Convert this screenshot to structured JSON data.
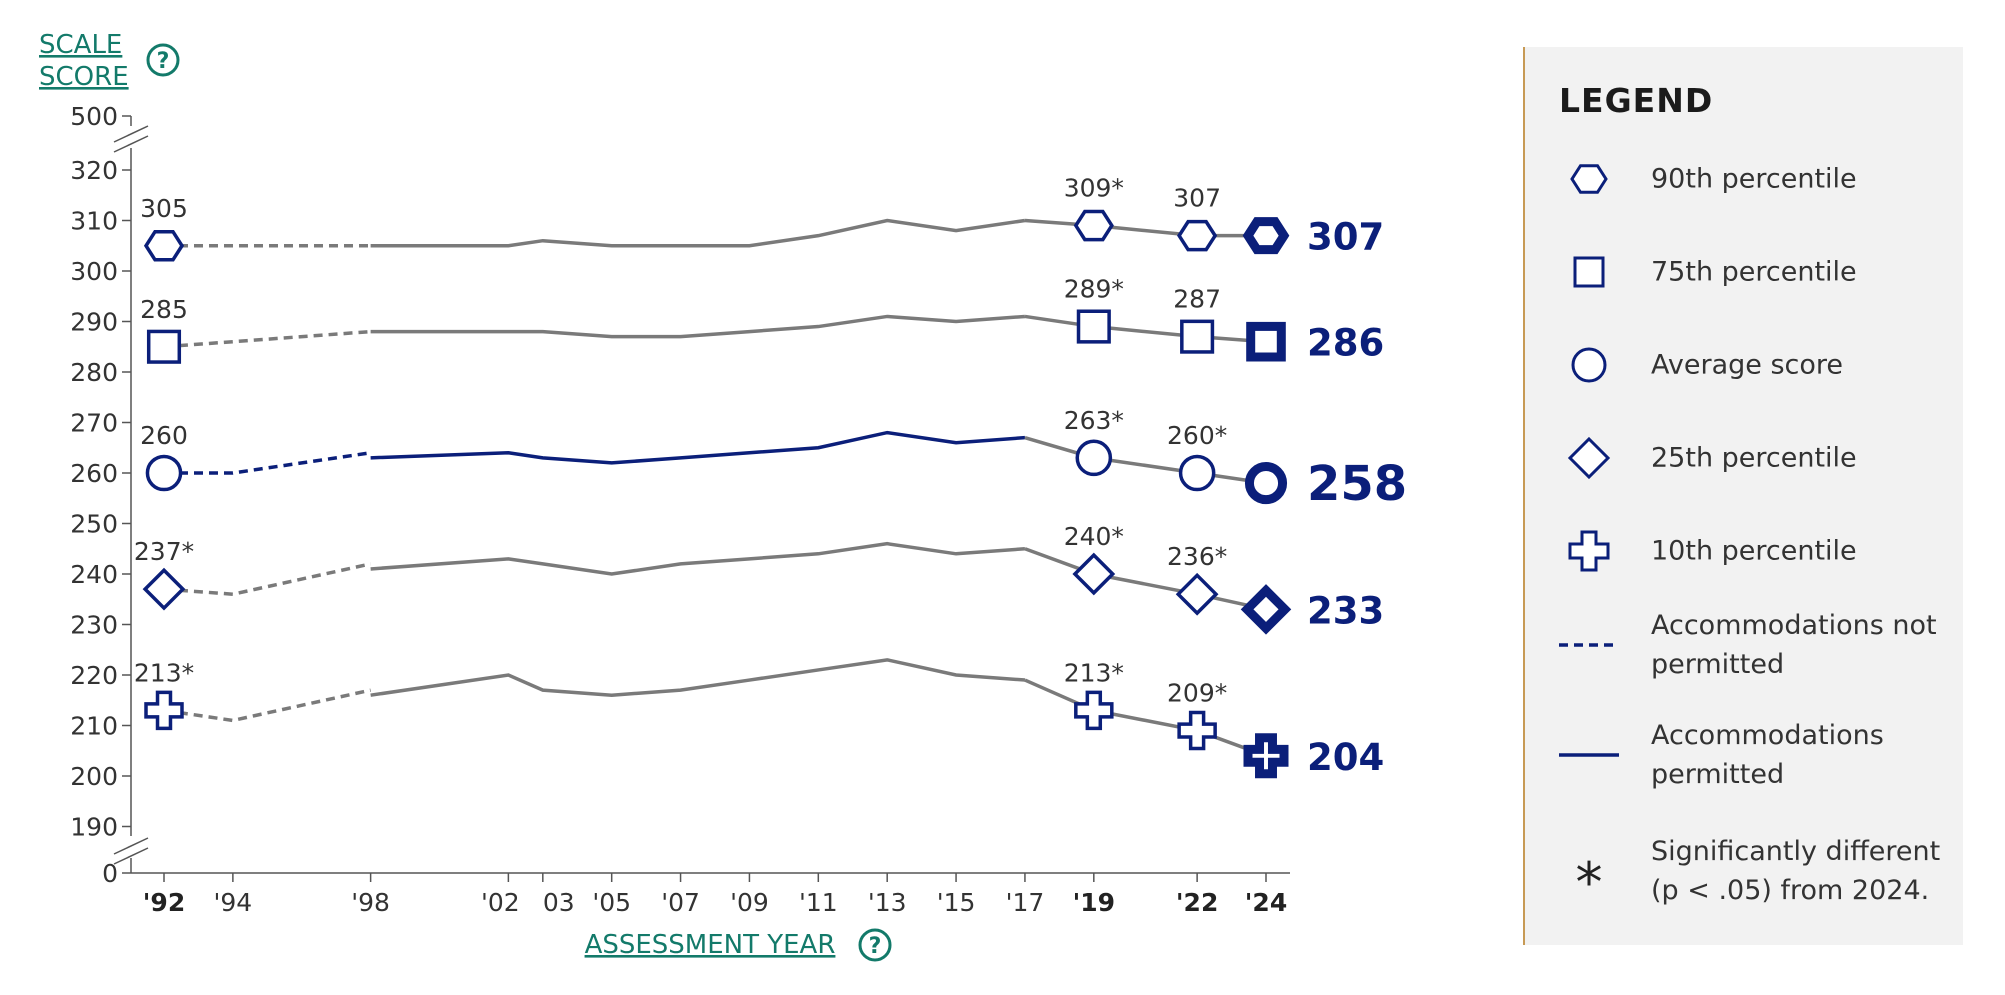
{
  "y_axis": {
    "label_line1": "SCALE",
    "label_line2": "SCORE",
    "help_icon": "question-circle-icon"
  },
  "x_axis": {
    "label": "ASSESSMENT YEAR",
    "help_icon": "question-circle-icon"
  },
  "colors": {
    "navy": "#0b1f7a",
    "gray": "#7a7a7a",
    "teal": "#137a6a",
    "legend_bg": "#f2f2f2",
    "legend_border": "#c79a55"
  },
  "chart_data": {
    "type": "line",
    "ylabel": "SCALE SCORE",
    "xlabel": "ASSESSMENT YEAR",
    "y_ticks": [
      "500",
      "320",
      "310",
      "300",
      "290",
      "280",
      "270",
      "260",
      "250",
      "240",
      "230",
      "220",
      "210",
      "200",
      "190",
      "0"
    ],
    "ylim": [
      190,
      320
    ],
    "y_axis_break": true,
    "x_ticks": [
      {
        "year": 1992,
        "label": "'92",
        "bold": true
      },
      {
        "year": 1994,
        "label": "'94",
        "bold": false
      },
      {
        "year": 1998,
        "label": "'98",
        "bold": false
      },
      {
        "year": 2002,
        "label": "'02",
        "bold": false
      },
      {
        "year": 2003,
        "label": "03",
        "bold": false
      },
      {
        "year": 2005,
        "label": "'05",
        "bold": false
      },
      {
        "year": 2007,
        "label": "'07",
        "bold": false
      },
      {
        "year": 2009,
        "label": "'09",
        "bold": false
      },
      {
        "year": 2011,
        "label": "'11",
        "bold": false
      },
      {
        "year": 2013,
        "label": "'13",
        "bold": false
      },
      {
        "year": 2015,
        "label": "'15",
        "bold": false
      },
      {
        "year": 2017,
        "label": "'17",
        "bold": false
      },
      {
        "year": 2019,
        "label": "'19",
        "bold": true
      },
      {
        "year": 2022,
        "label": "'22",
        "bold": true
      },
      {
        "year": 2024,
        "label": "'24",
        "bold": true
      }
    ],
    "series": [
      {
        "marker": "hexagon",
        "color": "gray",
        "values_not_permitted": [
          [
            1992,
            305
          ],
          [
            1994,
            305
          ],
          [
            1998,
            305
          ]
        ],
        "values_permitted": [
          [
            1998,
            305
          ],
          [
            2002,
            305
          ],
          [
            2003,
            306
          ],
          [
            2005,
            305
          ],
          [
            2007,
            305
          ],
          [
            2009,
            305
          ],
          [
            2011,
            307
          ],
          [
            2013,
            310
          ],
          [
            2015,
            308
          ],
          [
            2017,
            310
          ],
          [
            2019,
            309
          ],
          [
            2022,
            307
          ],
          [
            2024,
            307
          ]
        ],
        "labeled_points": [
          {
            "year": 1992,
            "value": 305,
            "label": "305"
          },
          {
            "year": 2019,
            "value": 309,
            "label": "309*"
          },
          {
            "year": 2022,
            "value": 307,
            "label": "307"
          }
        ],
        "end_label": "307"
      },
      {
        "marker": "square",
        "color": "gray",
        "values_not_permitted": [
          [
            1992,
            285
          ],
          [
            1994,
            286
          ],
          [
            1998,
            288
          ]
        ],
        "values_permitted": [
          [
            1998,
            288
          ],
          [
            2002,
            288
          ],
          [
            2003,
            288
          ],
          [
            2005,
            287
          ],
          [
            2007,
            287
          ],
          [
            2009,
            288
          ],
          [
            2011,
            289
          ],
          [
            2013,
            291
          ],
          [
            2015,
            290
          ],
          [
            2017,
            291
          ],
          [
            2019,
            289
          ],
          [
            2022,
            287
          ],
          [
            2024,
            286
          ]
        ],
        "labeled_points": [
          {
            "year": 1992,
            "value": 285,
            "label": "285"
          },
          {
            "year": 2019,
            "value": 289,
            "label": "289*"
          },
          {
            "year": 2022,
            "value": 287,
            "label": "287"
          }
        ],
        "end_label": "286"
      },
      {
        "marker": "circle",
        "color": "navy",
        "values_not_permitted": [
          [
            1992,
            260
          ],
          [
            1994,
            260
          ],
          [
            1998,
            264
          ]
        ],
        "values_permitted": [
          [
            1998,
            263
          ],
          [
            2002,
            264
          ],
          [
            2003,
            263
          ],
          [
            2005,
            262
          ],
          [
            2007,
            263
          ],
          [
            2009,
            264
          ],
          [
            2011,
            265
          ],
          [
            2013,
            268
          ],
          [
            2015,
            266
          ],
          [
            2017,
            267
          ],
          [
            2019,
            263
          ],
          [
            2022,
            260
          ],
          [
            2024,
            258
          ]
        ],
        "labeled_points": [
          {
            "year": 1992,
            "value": 260,
            "label": "260"
          },
          {
            "year": 2019,
            "value": 263,
            "label": "263*"
          },
          {
            "year": 2022,
            "value": 260,
            "label": "260*"
          }
        ],
        "end_label": "258"
      },
      {
        "marker": "diamond",
        "color": "gray",
        "values_not_permitted": [
          [
            1992,
            237
          ],
          [
            1994,
            236
          ],
          [
            1998,
            242
          ]
        ],
        "values_permitted": [
          [
            1998,
            241
          ],
          [
            2002,
            243
          ],
          [
            2003,
            242
          ],
          [
            2005,
            240
          ],
          [
            2007,
            242
          ],
          [
            2009,
            243
          ],
          [
            2011,
            244
          ],
          [
            2013,
            246
          ],
          [
            2015,
            244
          ],
          [
            2017,
            245
          ],
          [
            2019,
            240
          ],
          [
            2022,
            236
          ],
          [
            2024,
            233
          ]
        ],
        "labeled_points": [
          {
            "year": 1992,
            "value": 237,
            "label": "237*"
          },
          {
            "year": 2019,
            "value": 240,
            "label": "240*"
          },
          {
            "year": 2022,
            "value": 236,
            "label": "236*"
          }
        ],
        "end_label": "233"
      },
      {
        "marker": "plus",
        "color": "gray",
        "values_not_permitted": [
          [
            1992,
            213
          ],
          [
            1994,
            211
          ],
          [
            1998,
            217
          ]
        ],
        "values_permitted": [
          [
            1998,
            216
          ],
          [
            2002,
            220
          ],
          [
            2003,
            217
          ],
          [
            2005,
            216
          ],
          [
            2007,
            217
          ],
          [
            2009,
            219
          ],
          [
            2011,
            221
          ],
          [
            2013,
            223
          ],
          [
            2015,
            220
          ],
          [
            2017,
            219
          ],
          [
            2019,
            213
          ],
          [
            2022,
            209
          ],
          [
            2024,
            204
          ]
        ],
        "labeled_points": [
          {
            "year": 1992,
            "value": 213,
            "label": "213*"
          },
          {
            "year": 2019,
            "value": 213,
            "label": "213*"
          },
          {
            "year": 2022,
            "value": 209,
            "label": "209*"
          }
        ],
        "end_label": "204"
      }
    ]
  },
  "legend": {
    "title": "LEGEND",
    "items": [
      {
        "symbol": "hexagon",
        "text": "90th percentile"
      },
      {
        "symbol": "square",
        "text": "75th percentile"
      },
      {
        "symbol": "circle",
        "text": "Average score"
      },
      {
        "symbol": "diamond",
        "text": "25th percentile"
      },
      {
        "symbol": "plus",
        "text": "10th percentile"
      },
      {
        "symbol": "dashed-line",
        "text": "Accommodations not permitted"
      },
      {
        "symbol": "solid-line",
        "text": "Accommodations permitted"
      },
      {
        "symbol": "asterisk",
        "text": "Significantly different (p < .05) from 2024."
      }
    ]
  }
}
